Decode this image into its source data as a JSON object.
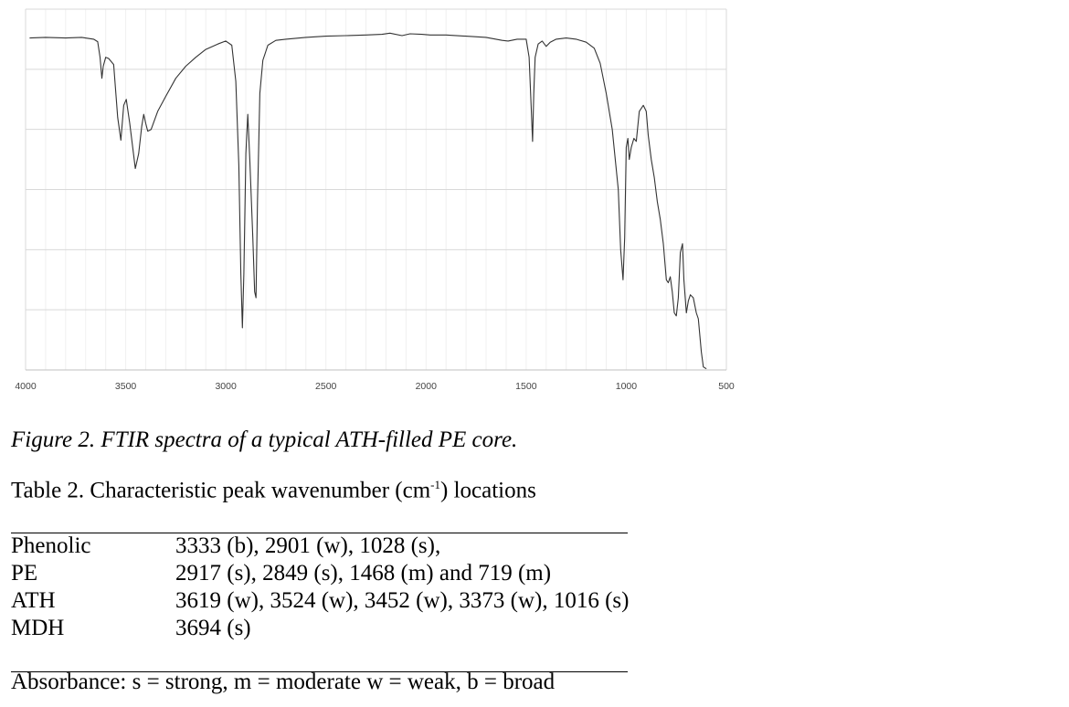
{
  "chart_data": {
    "type": "line",
    "title": "",
    "xlabel": "",
    "ylabel": "",
    "xlim": [
      4000,
      500
    ],
    "x_reversed": true,
    "ylim": [
      0,
      6
    ],
    "grid": true,
    "legend": "none",
    "x_ticks": [
      "4000",
      "3500",
      "3000",
      "2500",
      "2000",
      "1500",
      "1000",
      "500"
    ],
    "series": [
      {
        "color": "#333333",
        "points": [
          [
            3980,
            5.52
          ],
          [
            3900,
            5.53
          ],
          [
            3800,
            5.52
          ],
          [
            3720,
            5.53
          ],
          [
            3660,
            5.5
          ],
          [
            3640,
            5.46
          ],
          [
            3628,
            5.2
          ],
          [
            3619,
            4.85
          ],
          [
            3612,
            5.05
          ],
          [
            3600,
            5.2
          ],
          [
            3585,
            5.18
          ],
          [
            3560,
            5.08
          ],
          [
            3540,
            4.2
          ],
          [
            3524,
            3.82
          ],
          [
            3510,
            4.4
          ],
          [
            3497,
            4.5
          ],
          [
            3480,
            4.1
          ],
          [
            3452,
            3.35
          ],
          [
            3435,
            3.6
          ],
          [
            3420,
            4.05
          ],
          [
            3410,
            4.25
          ],
          [
            3400,
            4.1
          ],
          [
            3390,
            3.97
          ],
          [
            3373,
            4.0
          ],
          [
            3340,
            4.3
          ],
          [
            3300,
            4.55
          ],
          [
            3250,
            4.85
          ],
          [
            3200,
            5.05
          ],
          [
            3150,
            5.2
          ],
          [
            3100,
            5.33
          ],
          [
            3040,
            5.42
          ],
          [
            3000,
            5.47
          ],
          [
            2970,
            5.4
          ],
          [
            2950,
            4.8
          ],
          [
            2935,
            3.4
          ],
          [
            2925,
            1.6
          ],
          [
            2917,
            0.7
          ],
          [
            2910,
            1.6
          ],
          [
            2900,
            3.6
          ],
          [
            2890,
            4.25
          ],
          [
            2880,
            3.5
          ],
          [
            2865,
            2.2
          ],
          [
            2856,
            1.3
          ],
          [
            2849,
            1.2
          ],
          [
            2842,
            2.8
          ],
          [
            2830,
            4.6
          ],
          [
            2815,
            5.15
          ],
          [
            2790,
            5.4
          ],
          [
            2750,
            5.48
          ],
          [
            2700,
            5.5
          ],
          [
            2600,
            5.53
          ],
          [
            2500,
            5.55
          ],
          [
            2400,
            5.56
          ],
          [
            2300,
            5.57
          ],
          [
            2220,
            5.58
          ],
          [
            2180,
            5.6
          ],
          [
            2120,
            5.56
          ],
          [
            2080,
            5.59
          ],
          [
            2020,
            5.58
          ],
          [
            1980,
            5.57
          ],
          [
            1900,
            5.57
          ],
          [
            1800,
            5.55
          ],
          [
            1700,
            5.53
          ],
          [
            1620,
            5.48
          ],
          [
            1590,
            5.47
          ],
          [
            1545,
            5.5
          ],
          [
            1500,
            5.5
          ],
          [
            1485,
            5.2
          ],
          [
            1475,
            4.4
          ],
          [
            1468,
            3.8
          ],
          [
            1462,
            4.6
          ],
          [
            1455,
            5.2
          ],
          [
            1440,
            5.42
          ],
          [
            1420,
            5.47
          ],
          [
            1400,
            5.38
          ],
          [
            1380,
            5.45
          ],
          [
            1350,
            5.5
          ],
          [
            1300,
            5.52
          ],
          [
            1250,
            5.5
          ],
          [
            1200,
            5.45
          ],
          [
            1160,
            5.35
          ],
          [
            1130,
            5.1
          ],
          [
            1100,
            4.6
          ],
          [
            1070,
            4.0
          ],
          [
            1040,
            3.0
          ],
          [
            1028,
            2.0
          ],
          [
            1016,
            1.5
          ],
          [
            1008,
            2.2
          ],
          [
            1000,
            3.7
          ],
          [
            992,
            3.85
          ],
          [
            985,
            3.5
          ],
          [
            975,
            3.7
          ],
          [
            962,
            3.85
          ],
          [
            950,
            3.8
          ],
          [
            935,
            4.3
          ],
          [
            915,
            4.4
          ],
          [
            900,
            4.3
          ],
          [
            890,
            3.9
          ],
          [
            875,
            3.5
          ],
          [
            860,
            3.2
          ],
          [
            845,
            2.8
          ],
          [
            830,
            2.5
          ],
          [
            815,
            2.1
          ],
          [
            800,
            1.5
          ],
          [
            790,
            1.45
          ],
          [
            780,
            1.55
          ],
          [
            770,
            1.3
          ],
          [
            760,
            0.95
          ],
          [
            750,
            0.9
          ],
          [
            740,
            1.2
          ],
          [
            730,
            1.95
          ],
          [
            719,
            2.1
          ],
          [
            712,
            1.5
          ],
          [
            700,
            0.95
          ],
          [
            690,
            1.15
          ],
          [
            680,
            1.25
          ],
          [
            665,
            1.2
          ],
          [
            650,
            0.95
          ],
          [
            640,
            0.85
          ],
          [
            625,
            0.3
          ],
          [
            615,
            0.05
          ],
          [
            600,
            0.02
          ]
        ]
      }
    ]
  },
  "caption": "Figure 2. FTIR spectra of a typical ATH-filled PE core.",
  "table": {
    "title_before": "Table 2. Characteristic peak wavenumber (cm",
    "title_sup": "-1",
    "title_after": ") locations",
    "rows": [
      {
        "name": "Phenolic",
        "peaks": "3333 (b), 2901 (w), 1028 (s),"
      },
      {
        "name": "PE",
        "peaks": "2917 (s), 2849 (s), 1468 (m) and 719 (m)"
      },
      {
        "name": "ATH",
        "peaks": "3619 (w), 3524 (w), 3452 (w), 3373 (w), 1016 (s)"
      },
      {
        "name": "MDH",
        "peaks": "3694 (s)"
      }
    ],
    "footnote": "Absorbance: s = strong, m = moderate w = weak, b = broad"
  }
}
